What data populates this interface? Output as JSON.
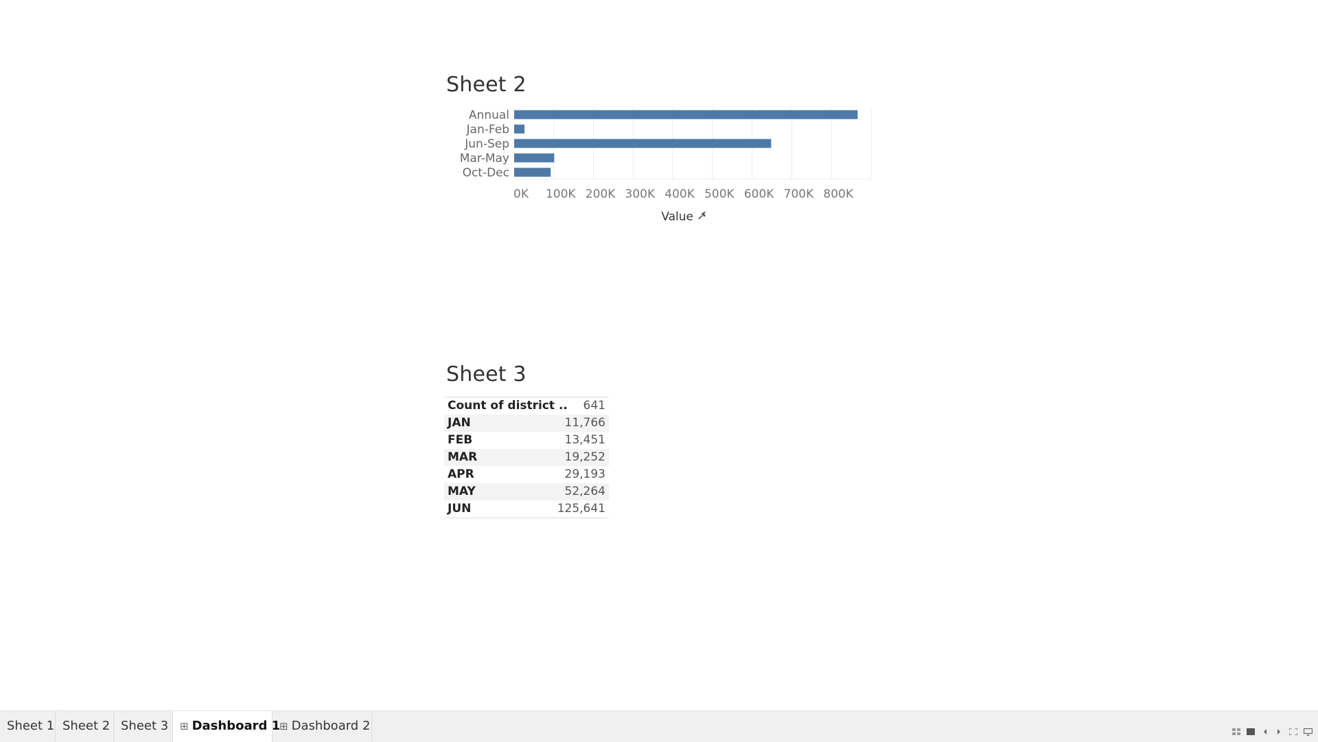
{
  "sheet2": {
    "title": "Sheet 2"
  },
  "sheet3": {
    "title": "Sheet 3",
    "rows": [
      {
        "label": "Count of district ..",
        "value": "641"
      },
      {
        "label": "JAN",
        "value": "11,766"
      },
      {
        "label": "FEB",
        "value": "13,451"
      },
      {
        "label": "MAR",
        "value": "19,252"
      },
      {
        "label": "APR",
        "value": "29,193"
      },
      {
        "label": "MAY",
        "value": "52,264"
      },
      {
        "label": "JUN",
        "value": "125,641"
      }
    ]
  },
  "chart_data": {
    "type": "bar",
    "orientation": "horizontal",
    "categories": [
      "Annual",
      "Jan-Feb",
      "Jun-Sep",
      "Mar-May",
      "Oct-Dec"
    ],
    "values": [
      866000,
      26000,
      648000,
      101000,
      92000
    ],
    "xlabel": "Value",
    "ylabel": "",
    "xlim": [
      0,
      900000
    ],
    "ticks": [
      "0K",
      "100K",
      "200K",
      "300K",
      "400K",
      "500K",
      "600K",
      "700K",
      "800K"
    ],
    "grid": true,
    "bar_color": "#4e79a7"
  },
  "tabs": [
    {
      "label": "Sheet 1",
      "icon": "",
      "active": false
    },
    {
      "label": "Sheet 2",
      "icon": "",
      "active": false
    },
    {
      "label": "Sheet 3",
      "icon": "",
      "active": false
    },
    {
      "label": "Dashboard 1",
      "icon": "dashboard-grid-icon",
      "active": true
    },
    {
      "label": "Dashboard 2",
      "icon": "dashboard-grid-icon",
      "active": false
    }
  ],
  "controls": [
    "grid-view-icon",
    "filmstrip-view-icon",
    "previous-icon",
    "next-icon",
    "fullscreen-icon",
    "presentation-icon"
  ]
}
